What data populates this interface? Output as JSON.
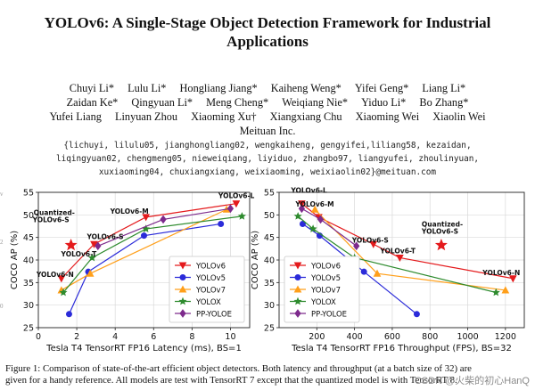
{
  "paper": {
    "title_line1": "YOLOv6: A Single-Stage Object Detection Framework for Industrial",
    "title_line2": "Applications",
    "authors_row1": [
      "Chuyi Li*",
      "Lulu Li*",
      "Hongliang Jiang*",
      "Kaiheng Weng*",
      "Yifei Geng*",
      "Liang Li*"
    ],
    "authors_row2": [
      "Zaidan Ke*",
      "Qingyuan Li*",
      "Meng Cheng*",
      "Weiqiang Nie*",
      "Yiduo Li*",
      "Bo Zhang*"
    ],
    "authors_row3": [
      "Yufei Liang",
      "Linyuan Zhou",
      "Xiaoming Xu†",
      "Xiangxiang Chu",
      "Xiaoming Wei",
      "Xiaolin Wei"
    ],
    "affiliation": "Meituan Inc.",
    "emails_line1": "{lichuyi, lilulu05, jianghongliang02, wengkaiheng, gengyifei,liliang58, kezaidan,",
    "emails_line2": "liqingyuan02, chengmeng05, nieweiqiang, liyiduo, zhangbo97, liangyufei, zhoulinyuan,",
    "emails_line3": "xuxiaoming04, chuxiangxiang, weixiaoming, weixiaolin02}@meituan.com",
    "caption_line1": "Figure 1: Comparison of state-of-the-art efficient object detectors. Both latency and throughput (at a batch size of 32) are",
    "caption_line2": "given for a handy reference. All models are test with TensorRT 7 except that the quantized model is with TensorRT 8.",
    "watermark": "CSDN @火柴的初心HanQ",
    "edge_marks": [
      "v",
      "2",
      "0"
    ]
  },
  "chart_data": [
    {
      "type": "line",
      "xlabel": "Tesla T4 TensorRT FP16 Latency (ms), BS=1",
      "ylabel": "COCO AP (%)",
      "xlim": [
        0,
        11
      ],
      "ylim": [
        25,
        55
      ],
      "xticks": [
        0,
        2,
        4,
        6,
        8,
        10
      ],
      "yticks": [
        25,
        30,
        35,
        40,
        45,
        50,
        55
      ],
      "legend_position": "bottom-right",
      "series": [
        {
          "name": "YOLOv6",
          "color": "#e41a1c",
          "marker": "tri-down",
          "x": [
            1.2,
            2.9,
            5.6,
            10.3
          ],
          "y": [
            35.9,
            43.5,
            49.5,
            52.5
          ]
        },
        {
          "name": "YOLOv5",
          "color": "#2b2bd9",
          "marker": "circle",
          "x": [
            1.6,
            2.6,
            5.5,
            9.5
          ],
          "y": [
            28.0,
            37.4,
            45.4,
            48.0
          ]
        },
        {
          "name": "YOLOv7",
          "color": "#ff9f1a",
          "marker": "tri-up",
          "x": [
            1.2,
            2.7,
            9.8
          ],
          "y": [
            33.3,
            37.0,
            51.2
          ]
        },
        {
          "name": "YOLOX",
          "color": "#2e8b2e",
          "marker": "star",
          "x": [
            1.3,
            2.8,
            5.6,
            10.6
          ],
          "y": [
            32.8,
            40.5,
            46.9,
            49.7
          ]
        },
        {
          "name": "PP-YOLOE",
          "color": "#7d2a8c",
          "marker": "diamond",
          "x": [
            3.1,
            6.5,
            10.0
          ],
          "y": [
            43.1,
            49.0,
            51.4
          ]
        },
        {
          "name": "Quantized-YOLOv6-S",
          "color": "#e41a1c",
          "marker": "star-single",
          "x": [
            1.7
          ],
          "y": [
            43.3
          ]
        }
      ],
      "annotations": [
        "YOLOv6-L",
        "YOLOv6-M",
        "YOLOv6-S",
        "YOLOv6-T",
        "YOLOv6-N",
        "Quantized-",
        "YOLOv6-S"
      ]
    },
    {
      "type": "line",
      "xlabel": "Tesla T4 TensorRT FP16 Throughput (FPS), BS=32",
      "ylabel": "COCO AP (%)",
      "xlim": [
        0,
        1300
      ],
      "ylim": [
        25,
        55
      ],
      "xticks": [
        200,
        400,
        600,
        800,
        1000,
        1200
      ],
      "yticks": [
        25,
        30,
        35,
        40,
        45,
        50,
        55
      ],
      "legend_position": "bottom-left",
      "series": [
        {
          "name": "YOLOv6",
          "color": "#e41a1c",
          "marker": "tri-down",
          "x": [
            120,
            210,
            500,
            640,
            1240
          ],
          "y": [
            52.5,
            49.5,
            43.5,
            40.5,
            35.9
          ]
        },
        {
          "name": "YOLOv5",
          "color": "#2b2bd9",
          "marker": "circle",
          "x": [
            125,
            215,
            450,
            730
          ],
          "y": [
            48.0,
            45.4,
            37.4,
            28.0
          ]
        },
        {
          "name": "YOLOv7",
          "color": "#ff9f1a",
          "marker": "tri-up",
          "x": [
            190,
            520,
            1200
          ],
          "y": [
            51.2,
            37.0,
            33.3
          ]
        },
        {
          "name": "YOLOX",
          "color": "#2e8b2e",
          "marker": "star",
          "x": [
            100,
            180,
            400,
            1150
          ],
          "y": [
            49.7,
            46.9,
            40.5,
            32.8
          ]
        },
        {
          "name": "PP-YOLOE",
          "color": "#7d2a8c",
          "marker": "diamond",
          "x": [
            120,
            220,
            410
          ],
          "y": [
            51.4,
            49.0,
            43.1
          ]
        },
        {
          "name": "Quantized-YOLOv6-S",
          "color": "#e41a1c",
          "marker": "star-single",
          "x": [
            860
          ],
          "y": [
            43.3
          ]
        }
      ],
      "annotations": [
        "YOLOv6-L",
        "YOLOv6-M",
        "YOLOv6-S",
        "YOLOv6-T",
        "YOLOv6-N",
        "Quantized-",
        "YOLOv6-S"
      ]
    }
  ]
}
